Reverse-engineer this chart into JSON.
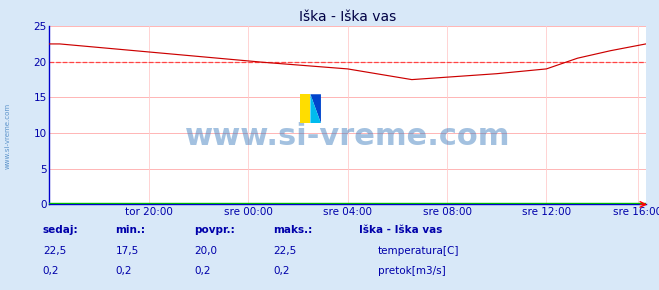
{
  "title": "Iška - Iška vas",
  "bg_color": "#d8e8f8",
  "plot_bg_color": "#ffffff",
  "grid_color_h": "#ffaaaa",
  "grid_color_v": "#ffcccc",
  "spine_color": "#0000cc",
  "x_min": 0,
  "x_max": 288,
  "y_min": 0,
  "y_max": 25,
  "y_ticks": [
    0,
    5,
    10,
    15,
    20,
    25
  ],
  "x_tick_labels": [
    "tor 20:00",
    "sre 00:00",
    "sre 04:00",
    "sre 08:00",
    "sre 12:00",
    "sre 16:00"
  ],
  "x_tick_positions": [
    48,
    96,
    144,
    192,
    240,
    284
  ],
  "avg_line_y": 20.0,
  "avg_line_color": "#ff4444",
  "temp_line_color": "#cc0000",
  "flow_line_color": "#00bb00",
  "watermark_text": "www.si-vreme.com",
  "watermark_color": "#3377bb",
  "watermark_alpha": 0.45,
  "watermark_fontsize": 22,
  "sidebar_text": "www.si-vreme.com",
  "sidebar_color": "#3377bb",
  "title_color": "#000044",
  "title_fontsize": 10,
  "tick_label_color": "#0000aa",
  "tick_fontsize": 7.5,
  "legend_title": "Iška - Iška vas",
  "stat_labels": [
    "sedaj:",
    "min.:",
    "povpr.:",
    "maks.:"
  ],
  "stat_values_temp": [
    "22,5",
    "17,5",
    "20,0",
    "22,5"
  ],
  "stat_values_flow": [
    "0,2",
    "0,2",
    "0,2",
    "0,2"
  ],
  "stat_color": "#0000aa",
  "legend_temp_label": "temperatura[C]",
  "legend_flow_label": "pretok[m3/s]",
  "temp_legend_color": "#cc0000",
  "flow_legend_color": "#00bb00"
}
